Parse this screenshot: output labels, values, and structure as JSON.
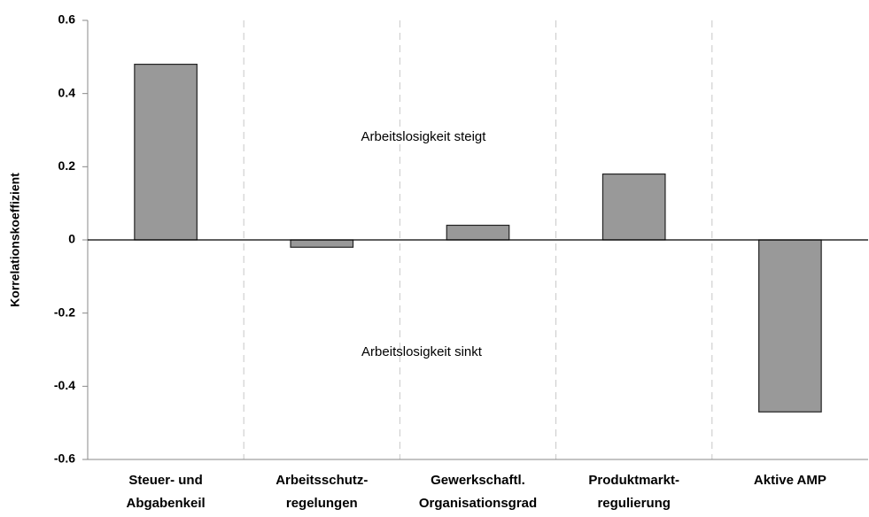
{
  "chart_data": {
    "type": "bar",
    "y_label": "Korrelationskoeffizient",
    "categories": [
      [
        "Steuer- und",
        "Abgabenkeil"
      ],
      [
        "Arbeitsschutz-",
        "regelungen"
      ],
      [
        "Gewerkschaftl.",
        "Organisationsgrad"
      ],
      [
        "Produktmarkt-",
        "regulierung"
      ],
      [
        "Aktive AMP"
      ]
    ],
    "values": [
      0.48,
      -0.02,
      0.04,
      0.18,
      -0.47
    ],
    "color": "#999999",
    "ylim": [
      -0.6,
      0.6
    ],
    "yticks": [
      -0.6,
      -0.4,
      -0.2,
      0,
      0.2,
      0.4,
      0.6
    ],
    "annotations": [
      "Arbeitslosigkeit steigt",
      "Arbeitslosigkeit sinkt"
    ],
    "grid": true
  }
}
